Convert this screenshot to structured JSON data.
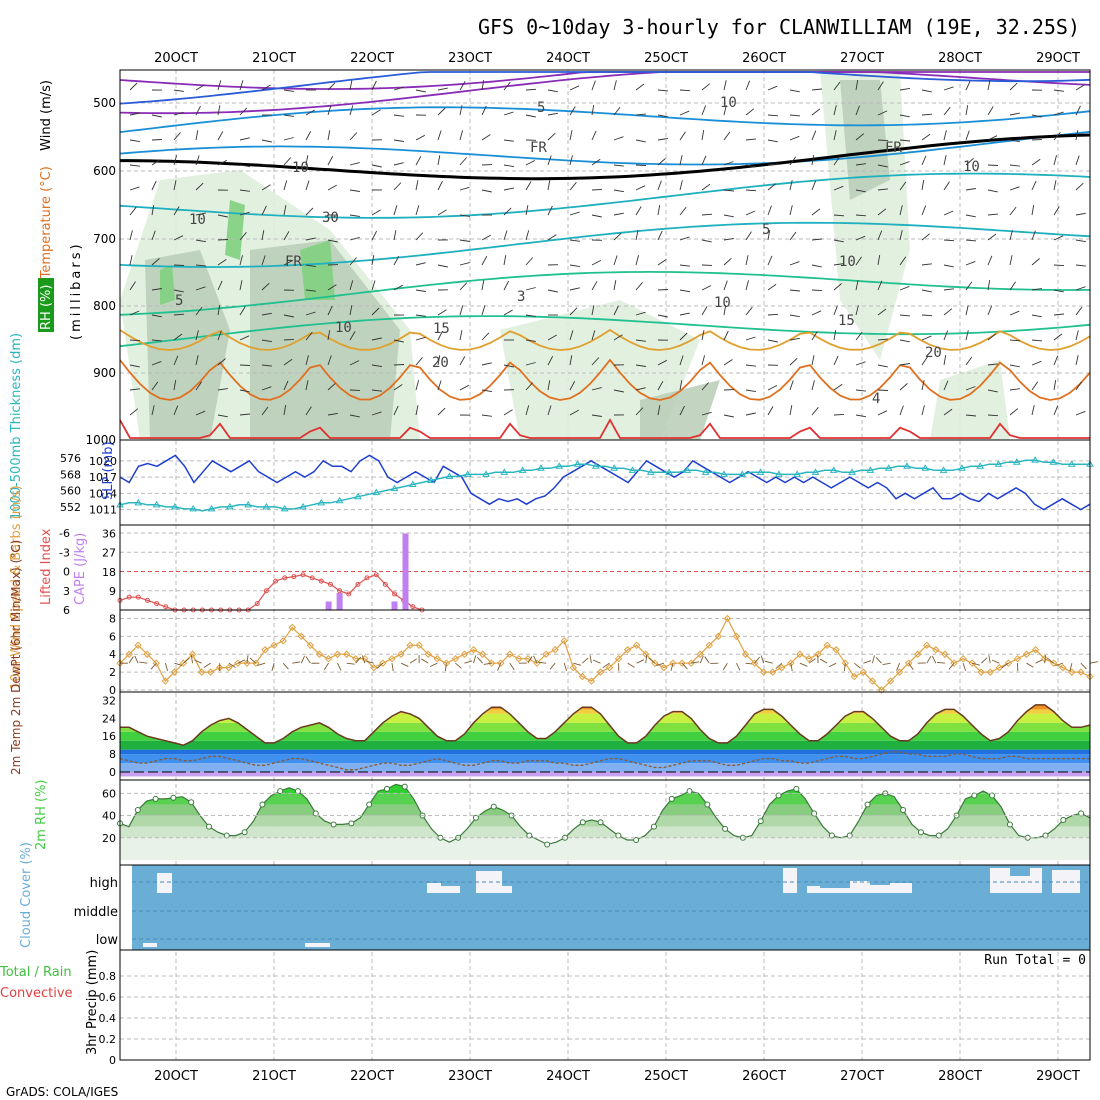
{
  "title": "GFS 0~10day 3-hourly for CLANWILLIAM (19E, 32.25S)",
  "footer": "GrADS: COLA/IGES",
  "x_ticks": [
    "20OCT",
    "21OCT",
    "22OCT",
    "23OCT",
    "24OCT",
    "25OCT",
    "26OCT",
    "27OCT",
    "28OCT",
    "29OCT"
  ],
  "colors": {
    "rh_fill": "#7fd07f",
    "cloud": "#6aaed6",
    "slp": "#1f3fcf",
    "thickness": "#2ab6c0",
    "lifted": "#e05050",
    "cape": "#c080f0",
    "wind10m": "#e0a040",
    "rh2m": "#44cc44"
  },
  "chart_data": [
    {
      "type": "heatmap",
      "panel": "upper-air",
      "ylabel_parts": [
        "RH (%)",
        "Temperature (°C)",
        "Wind (m/s)"
      ],
      "ylabel2": "(millibars)",
      "y_ticks": [
        "500",
        "600",
        "700",
        "800",
        "900",
        "1000"
      ],
      "ylim": [
        1000,
        450
      ],
      "contour_labels": [
        "5",
        "10",
        "FR",
        "FR",
        "FR",
        "10",
        "5",
        "10",
        "5",
        "10",
        "15",
        "15",
        "20",
        "20",
        "4",
        "10",
        "10",
        "30",
        "3",
        "10"
      ]
    },
    {
      "type": "line",
      "panel": "slp-thickness",
      "ylabel_left": "1000-500mb Thickness (dm)",
      "ylabel_right": "SLP (mb)",
      "y_ticks_left": [
        "552",
        "560",
        "568",
        "576"
      ],
      "y_ticks_right": [
        "1011",
        "1014",
        "1017",
        "1020"
      ],
      "series": [
        {
          "name": "SLP (mb)",
          "values": [
            1017,
            1016,
            1019,
            1019.5,
            1019,
            1020,
            1021,
            1019,
            1016,
            1018,
            1020,
            1019,
            1018,
            1019,
            1020,
            1018,
            1017,
            1016,
            1017,
            1018,
            1017,
            1018,
            1020,
            1019,
            1019,
            1018,
            1020,
            1021,
            1020,
            1017,
            1016,
            1017,
            1018,
            1017,
            1016,
            1019,
            1018,
            1017,
            1014,
            1013,
            1012,
            1013,
            1012.5,
            1013,
            1012,
            1013,
            1013.5,
            1015,
            1017,
            1018,
            1019,
            1020,
            1019,
            1018,
            1017,
            1016,
            1018,
            1020,
            1019,
            1018,
            1017,
            1018,
            1020,
            1019,
            1018,
            1017,
            1016,
            1017,
            1018,
            1017,
            1016,
            1017,
            1016,
            1017,
            1016,
            1017,
            1016,
            1015,
            1016,
            1017,
            1016,
            1015,
            1016,
            1015,
            1013,
            1014,
            1013,
            1014,
            1015,
            1013,
            1013,
            1014,
            1013,
            1012.5,
            1014,
            1013,
            1014,
            1015,
            1014,
            1012,
            1011,
            1012,
            1013,
            1012,
            1011,
            1012
          ]
        },
        {
          "name": "1000-500mb Thickness (dm)",
          "values": [
            553,
            554,
            554,
            553,
            553,
            552,
            552,
            551,
            551,
            550,
            551,
            552,
            552,
            553,
            553,
            552,
            552,
            552,
            551,
            551,
            552,
            553,
            554,
            554,
            555,
            556,
            557,
            558,
            559,
            560,
            561,
            562,
            563,
            564,
            565,
            566,
            567,
            567,
            568,
            568,
            568,
            569,
            569,
            569,
            570,
            570,
            571,
            571,
            572,
            572,
            573,
            573,
            572,
            572,
            571,
            571,
            570,
            570,
            569,
            569,
            569,
            569,
            570,
            570,
            569,
            569,
            568,
            568,
            568,
            569,
            569,
            569,
            568,
            568,
            568,
            569,
            569,
            570,
            570,
            569,
            569,
            570,
            570,
            571,
            571,
            572,
            572,
            571,
            571,
            570,
            570,
            570,
            571,
            572,
            572,
            573,
            573,
            574,
            574,
            575,
            575,
            574,
            574,
            573,
            573,
            573,
            573
          ]
        }
      ]
    },
    {
      "type": "bar",
      "panel": "lifted-cape",
      "ylabel_left": "Lifted Index",
      "ylabel_right": "CAPE (J/kg)",
      "y_ticks_left": [
        "-6",
        "-3",
        "0",
        "3",
        "6"
      ],
      "y_ticks_right": [
        "9",
        "18",
        "27",
        "36"
      ],
      "lifted_index": [
        4.5,
        4.0,
        4.0,
        4.5,
        5.0,
        5.5,
        6.0,
        6.0,
        6.0,
        6.0,
        6.0,
        6.0,
        6.0,
        6.0,
        6.0,
        5.0,
        3.0,
        1.5,
        1.0,
        0.8,
        0.5,
        1.0,
        1.5,
        2.0,
        3.0,
        3.5,
        2.0,
        1.0,
        0.5,
        2.0,
        3.5,
        4.5,
        5.5,
        6.0
      ],
      "cape_x_index": [
        33,
        35,
        45,
        47
      ],
      "cape_values": [
        4,
        8,
        4,
        36
      ]
    },
    {
      "type": "line",
      "panel": "wind10m",
      "ylabel": "10m Wind Speed & Barbs (m/s)",
      "y_ticks": [
        "0",
        "2",
        "4",
        "6",
        "8"
      ],
      "values": [
        3,
        4,
        5,
        4,
        3,
        1,
        2,
        3,
        4,
        2,
        2,
        2.5,
        2.5,
        3,
        3,
        3,
        4.5,
        5,
        5.5,
        7,
        6,
        5,
        4,
        3.5,
        4,
        4,
        3.5,
        3.5,
        2.5,
        3,
        3.5,
        4,
        5,
        5,
        4,
        3.5,
        3,
        3.5,
        4,
        4.5,
        4,
        3,
        3,
        4,
        3.5,
        3.5,
        3,
        4,
        4.5,
        5.5,
        2.5,
        1.5,
        1,
        2,
        2.5,
        3.5,
        4.5,
        5,
        4,
        3,
        2.5,
        3,
        3,
        3,
        4,
        5,
        6,
        8,
        6,
        4,
        3,
        2,
        2,
        2.5,
        3,
        4,
        3.5,
        4,
        5,
        4.5,
        3,
        1.5,
        2,
        1,
        0,
        1,
        2,
        3,
        4,
        5,
        4.5,
        4,
        3,
        3.5,
        3,
        2,
        2,
        2.5,
        3,
        3.5,
        4,
        4.5,
        3.5,
        3,
        2.5,
        2,
        2,
        1.5
      ]
    },
    {
      "type": "area",
      "panel": "temp2m",
      "ylabel": "2m Temp 2m DewPt (6hr Min/Max) (°C)",
      "y_ticks": [
        "0",
        "8",
        "16",
        "24",
        "32"
      ],
      "series": [
        {
          "name": "2m Temp",
          "values": [
            20,
            20,
            18,
            16,
            15,
            14,
            13,
            12,
            14,
            18,
            21,
            23,
            24,
            22,
            19,
            16,
            13,
            13,
            15,
            18,
            20,
            21,
            22,
            20,
            17,
            15,
            14,
            14,
            18,
            22,
            25,
            27,
            26,
            24,
            20,
            16,
            14,
            14,
            17,
            22,
            26,
            29,
            29,
            26,
            22,
            18,
            15,
            15,
            18,
            22,
            26,
            29,
            29,
            26,
            21,
            16,
            13,
            13,
            16,
            21,
            25,
            27,
            27,
            24,
            19,
            15,
            13,
            13,
            16,
            21,
            26,
            28,
            28,
            25,
            21,
            17,
            14,
            14,
            17,
            21,
            25,
            27,
            27,
            24,
            20,
            16,
            14,
            14,
            17,
            22,
            26,
            28,
            28,
            25,
            21,
            17,
            14,
            15,
            18,
            23,
            27,
            30,
            30,
            27,
            23,
            20,
            20,
            21
          ]
        },
        {
          "name": "2m DewPt",
          "values": [
            6,
            5,
            4,
            4,
            5,
            6,
            6,
            5,
            5,
            6,
            7,
            7,
            6,
            5,
            4,
            3,
            3,
            4,
            5,
            6,
            6,
            5,
            4,
            3,
            2,
            1,
            1,
            2,
            3,
            4,
            4,
            3,
            3,
            4,
            5,
            6,
            5,
            4,
            3,
            3,
            4,
            5,
            5,
            4,
            4,
            5,
            5,
            5,
            4,
            4,
            3,
            3,
            4,
            5,
            6,
            6,
            5,
            4,
            3,
            2,
            2,
            3,
            4,
            5,
            5,
            5,
            4,
            3,
            3,
            4,
            5,
            6,
            6,
            5,
            5,
            4,
            4,
            5,
            6,
            7,
            7,
            6,
            6,
            7,
            8,
            9,
            9,
            8,
            8,
            7,
            7,
            7,
            8,
            8,
            7,
            6,
            6,
            6,
            7,
            7,
            6,
            6,
            6,
            6,
            6,
            6,
            6,
            6
          ]
        }
      ]
    },
    {
      "type": "area",
      "panel": "rh2m",
      "ylabel": "2m RH (%)",
      "y_ticks": [
        "20",
        "40",
        "60"
      ],
      "values": [
        33,
        30,
        45,
        53,
        55,
        55,
        56,
        57,
        52,
        40,
        30,
        25,
        22,
        22,
        25,
        35,
        50,
        58,
        62,
        65,
        62,
        55,
        42,
        35,
        32,
        32,
        33,
        38,
        50,
        62,
        64,
        68,
        66,
        55,
        40,
        28,
        20,
        16,
        20,
        28,
        38,
        44,
        48,
        45,
        40,
        30,
        22,
        18,
        14,
        16,
        20,
        28,
        34,
        36,
        34,
        28,
        22,
        18,
        18,
        22,
        30,
        45,
        55,
        58,
        62,
        60,
        50,
        38,
        28,
        22,
        20,
        22,
        35,
        50,
        58,
        62,
        64,
        55,
        42,
        30,
        22,
        20,
        22,
        35,
        50,
        58,
        60,
        57,
        45,
        32,
        25,
        22,
        22,
        28,
        40,
        55,
        58,
        62,
        58,
        48,
        32,
        22,
        20,
        20,
        22,
        28,
        36,
        40,
        42,
        38
      ]
    },
    {
      "type": "table",
      "panel": "cloud-cover",
      "ylabel": "Cloud Cover (%)",
      "y_ticks": [
        "high",
        "middle",
        "low"
      ]
    },
    {
      "type": "bar",
      "panel": "precip",
      "ylabel_parts": [
        "Total / Rain",
        "Convective",
        "3hr Precip (mm)"
      ],
      "y_ticks": [
        "0",
        "0.2",
        "0.4",
        "0.6",
        "0.8"
      ],
      "ylim": [
        0,
        1
      ],
      "run_total": "Run Total = 0",
      "values": []
    }
  ]
}
